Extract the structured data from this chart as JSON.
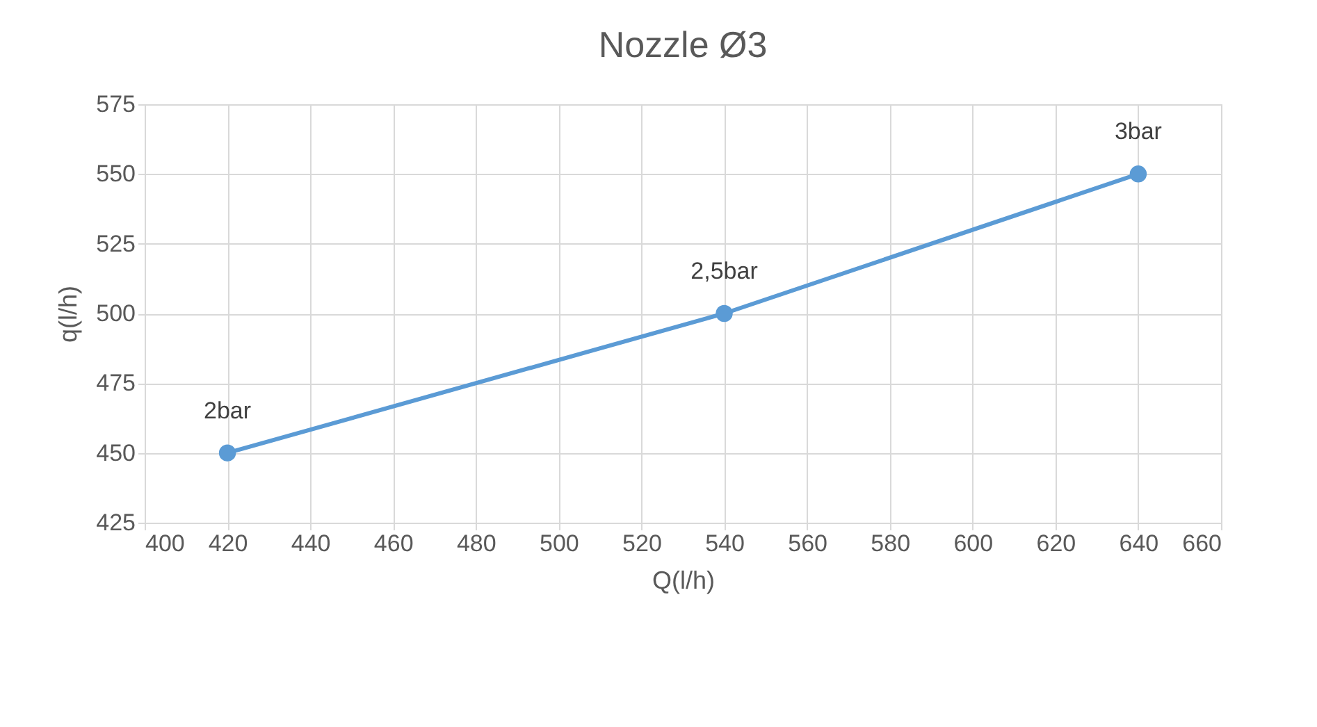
{
  "chart_data": {
    "type": "line",
    "title": "Nozzle Ø3",
    "xlabel": "Q(l/h)",
    "ylabel": "q(l/h)",
    "x": [
      420,
      540,
      640
    ],
    "series": [
      {
        "color": "#5b9bd5",
        "values": [
          450,
          500,
          550
        ]
      }
    ],
    "xlim": [
      400,
      660
    ],
    "xticks": [
      400,
      420,
      440,
      460,
      480,
      500,
      520,
      540,
      560,
      580,
      600,
      620,
      640,
      660
    ],
    "ylim": [
      425,
      575
    ],
    "yticks": [
      425,
      450,
      475,
      500,
      525,
      550,
      575
    ],
    "grid": true,
    "marker": "circle",
    "line_style": "solid",
    "annotations": [
      {
        "text": "2bar",
        "x": 420,
        "y": 450
      },
      {
        "text": "2,5bar",
        "x": 540,
        "y": 500
      },
      {
        "text": "3bar",
        "x": 640,
        "y": 550
      }
    ]
  }
}
